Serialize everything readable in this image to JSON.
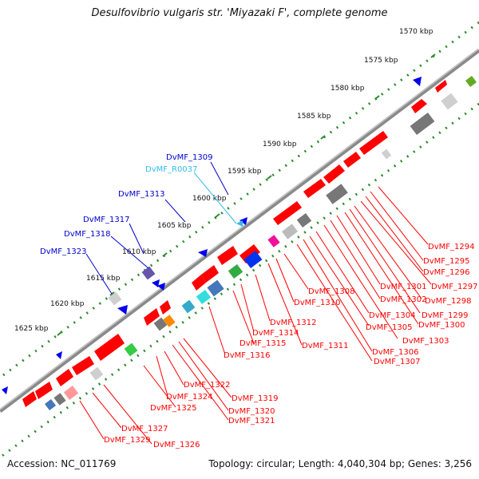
{
  "title": "Desulfovibrio vulgaris str. 'Miyazaki F', complete genome",
  "footer": {
    "accession": "Accession: NC_011769",
    "summary": "Topology: circular; Length: 4,040,304 bp; Genes: 3,256"
  },
  "colors": {
    "backbone": "#888888",
    "ruler": "#2a8a2a",
    "gene_forward": "#ff0000",
    "gene_label_red": "#ff0000",
    "gene_label_blue": "#0000cc",
    "gene_label_cyan": "#33bbee"
  },
  "scale_ticks": [
    "1570 kbp",
    "1575 kbp",
    "1580 kbp",
    "1585 kbp",
    "1590 kbp",
    "1595 kbp",
    "1600 kbp",
    "1605 kbp",
    "1610 kbp",
    "1615 kbp",
    "1620 kbp",
    "1625 kbp"
  ],
  "labels_upper": [
    {
      "text": "DvMF_1309",
      "color": "blue"
    },
    {
      "text": "DvMF_R0037",
      "color": "cyan"
    },
    {
      "text": "DvMF_1313",
      "color": "blue"
    },
    {
      "text": "DvMF_1317",
      "color": "blue"
    },
    {
      "text": "DvMF_1318",
      "color": "blue"
    },
    {
      "text": "DvMF_1323",
      "color": "blue"
    }
  ],
  "labels_lower": [
    "DvMF_1294",
    "DvMF_1295",
    "DvMF_1296",
    "DvMF_1297",
    "DvMF_1298",
    "DvMF_1299",
    "DvMF_1300",
    "DvMF_1301",
    "DvMF_1302",
    "DvMF_1303",
    "DvMF_1304",
    "DvMF_1305",
    "DvMF_1306",
    "DvMF_1307",
    "DvMF_1308",
    "DvMF_1310",
    "DvMF_1311",
    "DvMF_1312",
    "DvMF_1314",
    "DvMF_1315",
    "DvMF_1316",
    "DvMF_1319",
    "DvMF_1320",
    "DvMF_1321",
    "DvMF_1322",
    "DvMF_1324",
    "DvMF_1325",
    "DvMF_1326",
    "DvMF_1327",
    "DvMF_1329"
  ]
}
